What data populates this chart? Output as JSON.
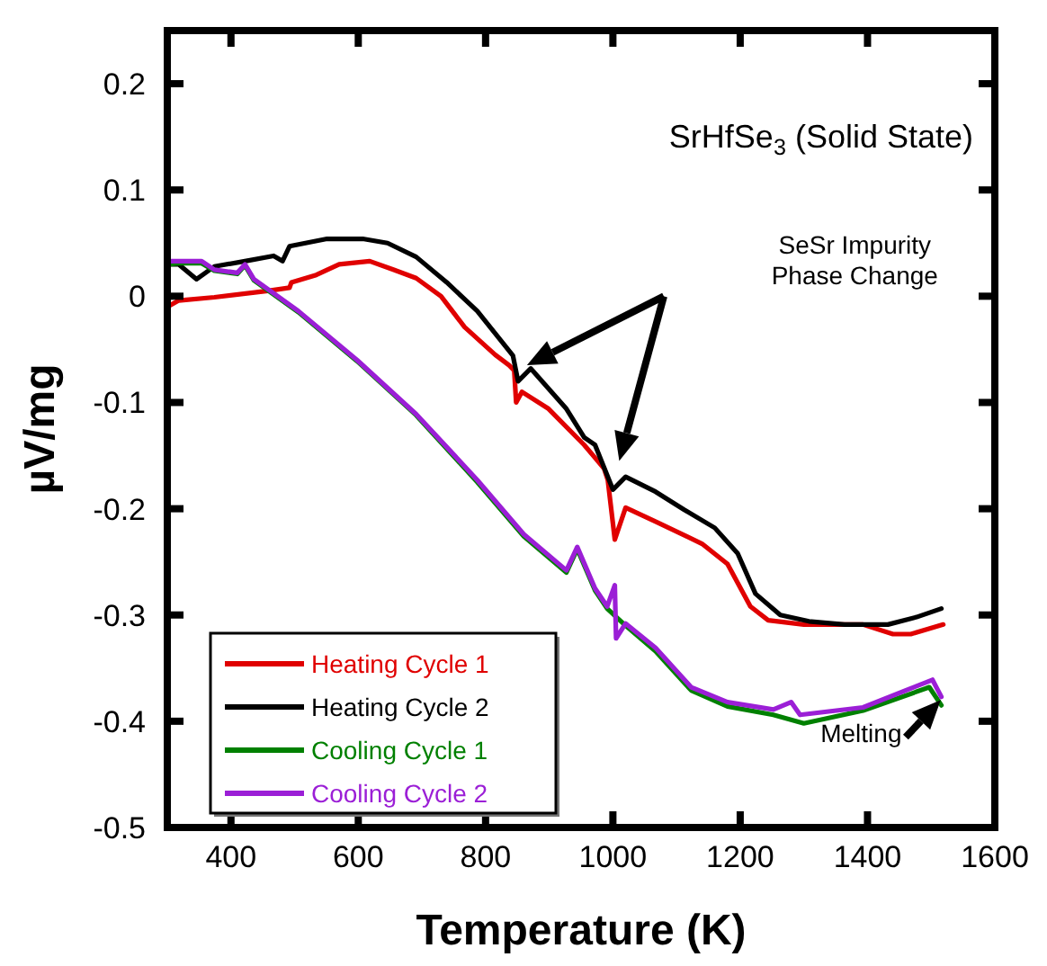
{
  "chart_data": {
    "type": "line",
    "xlabel": "Temperature (K)",
    "ylabel": "µV/mg",
    "xlim": [
      300,
      1600
    ],
    "ylim": [
      -0.5,
      0.25
    ],
    "xticks": [
      400,
      600,
      800,
      1000,
      1200,
      1400,
      1600
    ],
    "yticks": [
      -0.5,
      -0.4,
      -0.3,
      -0.2,
      -0.1,
      0,
      0.1,
      0.2
    ],
    "grid": false,
    "legend": "bottom left",
    "marker": "none",
    "line_style": "solid",
    "annotations": [
      "SrHfSe$_{3}$ (Solid State)",
      "SeSr Impurity\nPhase Change",
      "Melting"
    ],
    "series": [
      {
        "name": "Heating Cycle 1",
        "color": "#e00000",
        "x": [
          300,
          318,
          374,
          458,
          492,
          495,
          534,
          570,
          618,
          655,
          691,
          730,
          767,
          815,
          837,
          845,
          848,
          857,
          899,
          955,
          986,
          992,
          1003,
          1020,
          1067,
          1140,
          1180,
          1216,
          1244,
          1300,
          1393,
          1440,
          1468,
          1519
        ],
        "values": [
          -0.01,
          -0.004,
          -0.001,
          0.005,
          0.008,
          0.013,
          0.02,
          0.03,
          0.033,
          0.025,
          0.017,
          0,
          -0.029,
          -0.055,
          -0.065,
          -0.07,
          -0.1,
          -0.09,
          -0.106,
          -0.14,
          -0.162,
          -0.173,
          -0.229,
          -0.199,
          -0.212,
          -0.233,
          -0.252,
          -0.292,
          -0.305,
          -0.309,
          -0.309,
          -0.318,
          -0.318,
          -0.309
        ]
      },
      {
        "name": "Heating Cycle 2",
        "color": "#000000",
        "x": [
          300,
          318,
          346,
          374,
          422,
          467,
          481,
          492,
          551,
          607,
          646,
          691,
          739,
          787,
          843,
          851,
          871,
          927,
          955,
          972,
          1000,
          1020,
          1067,
          1112,
          1160,
          1196,
          1224,
          1263,
          1308,
          1364,
          1432,
          1477,
          1516
        ],
        "values": [
          0.03,
          0.03,
          0.016,
          0.028,
          0.033,
          0.038,
          0.033,
          0.047,
          0.054,
          0.054,
          0.05,
          0.037,
          0.013,
          -0.014,
          -0.056,
          -0.08,
          -0.068,
          -0.106,
          -0.133,
          -0.14,
          -0.182,
          -0.17,
          -0.184,
          -0.201,
          -0.218,
          -0.242,
          -0.28,
          -0.3,
          -0.306,
          -0.309,
          -0.309,
          -0.302,
          -0.294
        ]
      },
      {
        "name": "Cooling Cycle 1",
        "color": "#008000",
        "x": [
          300,
          318,
          354,
          374,
          410,
          422,
          436,
          506,
          598,
          691,
          787,
          860,
          927,
          944,
          972,
          991,
          1020,
          1067,
          1123,
          1180,
          1252,
          1300,
          1393,
          1497,
          1516
        ],
        "values": [
          0.03,
          0.031,
          0.031,
          0.024,
          0.021,
          0.029,
          0.015,
          -0.015,
          -0.061,
          -0.112,
          -0.175,
          -0.226,
          -0.26,
          -0.238,
          -0.277,
          -0.294,
          -0.31,
          -0.334,
          -0.371,
          -0.386,
          -0.394,
          -0.402,
          -0.39,
          -0.368,
          -0.385
        ]
      },
      {
        "name": "Cooling Cycle 2",
        "color": "#9b1fd6",
        "x": [
          300,
          318,
          354,
          374,
          410,
          422,
          436,
          506,
          598,
          691,
          787,
          860,
          927,
          944,
          972,
          991,
          1003,
          1005,
          1020,
          1067,
          1123,
          1180,
          1252,
          1280,
          1294,
          1393,
          1502,
          1516
        ],
        "values": [
          0.033,
          0.033,
          0.033,
          0.025,
          0.022,
          0.03,
          0.016,
          -0.014,
          -0.06,
          -0.111,
          -0.173,
          -0.224,
          -0.258,
          -0.236,
          -0.275,
          -0.292,
          -0.272,
          -0.322,
          -0.308,
          -0.331,
          -0.368,
          -0.382,
          -0.389,
          -0.382,
          -0.394,
          -0.387,
          -0.361,
          -0.377
        ]
      }
    ]
  }
}
